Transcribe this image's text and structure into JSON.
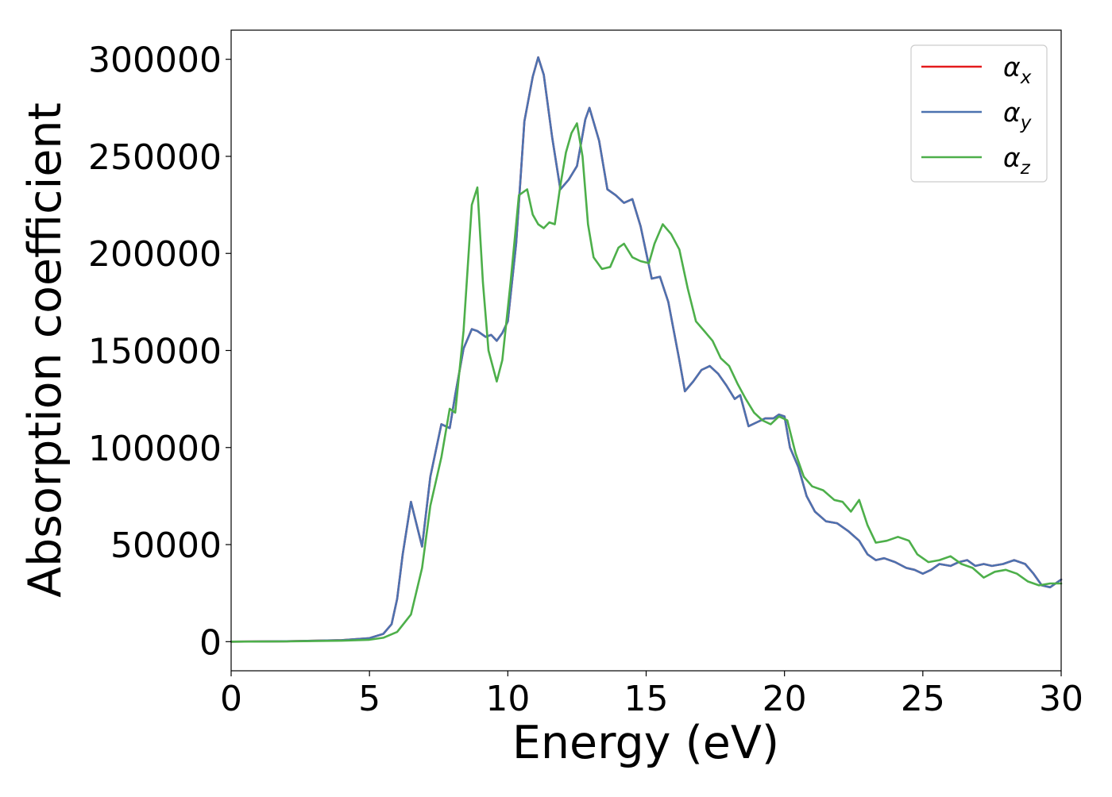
{
  "chart_data": {
    "type": "line",
    "title": "",
    "xlabel": "Energy (eV)",
    "ylabel": "Absorption coefficient",
    "xlim": [
      0,
      30
    ],
    "ylim": [
      -15000,
      315000
    ],
    "xticks": [
      0,
      5,
      10,
      15,
      20,
      25,
      30
    ],
    "yticks": [
      0,
      50000,
      100000,
      150000,
      200000,
      250000,
      300000
    ],
    "grid": false,
    "legend_position": "top-right",
    "series": [
      {
        "name": "α_x",
        "legend_symbol": "α",
        "legend_subscript": "x",
        "color": "#e41a1c",
        "x": [
          0,
          2,
          4,
          5,
          5.5,
          5.8,
          6.0,
          6.2,
          6.5,
          6.9,
          7.2,
          7.6,
          7.9,
          8.1,
          8.4,
          8.7,
          8.9,
          9.2,
          9.4,
          9.6,
          9.8,
          10.0,
          10.3,
          10.6,
          10.9,
          11.1,
          11.3,
          11.6,
          11.9,
          12.2,
          12.5,
          12.8,
          12.95,
          13.3,
          13.6,
          13.9,
          14.2,
          14.5,
          14.8,
          15.2,
          15.5,
          15.8,
          16.2,
          16.4,
          16.7,
          17.0,
          17.3,
          17.6,
          17.9,
          18.2,
          18.4,
          18.7,
          19.0,
          19.3,
          19.6,
          19.8,
          20.0,
          20.2,
          20.5,
          20.8,
          21.1,
          21.5,
          21.9,
          22.3,
          22.7,
          23.0,
          23.3,
          23.6,
          24.0,
          24.4,
          24.7,
          25.0,
          25.3,
          25.6,
          26.0,
          26.3,
          26.6,
          26.9,
          27.2,
          27.5,
          27.9,
          28.3,
          28.7,
          29.0,
          29.3,
          29.6,
          30.0
        ],
        "y": [
          0,
          200,
          800,
          1800,
          4000,
          9000,
          22000,
          45000,
          72000,
          49000,
          85000,
          112000,
          110000,
          127000,
          151000,
          161000,
          160000,
          157000,
          158000,
          155000,
          159000,
          165000,
          205000,
          268000,
          291000,
          301000,
          292000,
          260000,
          233000,
          238000,
          245000,
          269000,
          275000,
          258000,
          233000,
          230000,
          226000,
          228000,
          214000,
          187000,
          188000,
          175000,
          145000,
          129000,
          134000,
          140000,
          142000,
          138000,
          132000,
          125000,
          127000,
          111000,
          113000,
          115000,
          115000,
          117000,
          116000,
          100000,
          90000,
          75000,
          67000,
          62000,
          61000,
          57000,
          52000,
          45000,
          42000,
          43000,
          41000,
          38000,
          37000,
          35000,
          37000,
          40000,
          39000,
          41000,
          42000,
          39000,
          40000,
          39000,
          40000,
          42000,
          40000,
          35000,
          29000,
          28000,
          32000
        ]
      },
      {
        "name": "α_y",
        "legend_symbol": "α",
        "legend_subscript": "y",
        "color": "#4c72b0",
        "x": [
          0,
          2,
          4,
          5,
          5.5,
          5.8,
          6.0,
          6.2,
          6.5,
          6.9,
          7.2,
          7.6,
          7.9,
          8.1,
          8.4,
          8.7,
          8.9,
          9.2,
          9.4,
          9.6,
          9.8,
          10.0,
          10.3,
          10.6,
          10.9,
          11.1,
          11.3,
          11.6,
          11.9,
          12.2,
          12.5,
          12.8,
          12.95,
          13.3,
          13.6,
          13.9,
          14.2,
          14.5,
          14.8,
          15.2,
          15.5,
          15.8,
          16.2,
          16.4,
          16.7,
          17.0,
          17.3,
          17.6,
          17.9,
          18.2,
          18.4,
          18.7,
          19.0,
          19.3,
          19.6,
          19.8,
          20.0,
          20.2,
          20.5,
          20.8,
          21.1,
          21.5,
          21.9,
          22.3,
          22.7,
          23.0,
          23.3,
          23.6,
          24.0,
          24.4,
          24.7,
          25.0,
          25.3,
          25.6,
          26.0,
          26.3,
          26.6,
          26.9,
          27.2,
          27.5,
          27.9,
          28.3,
          28.7,
          29.0,
          29.3,
          29.6,
          30.0
        ],
        "y": [
          0,
          200,
          800,
          1800,
          4000,
          9000,
          22000,
          45000,
          72000,
          49000,
          85000,
          112000,
          110000,
          127000,
          151000,
          161000,
          160000,
          157000,
          158000,
          155000,
          159000,
          165000,
          205000,
          268000,
          291000,
          301000,
          292000,
          260000,
          233000,
          238000,
          245000,
          269000,
          275000,
          258000,
          233000,
          230000,
          226000,
          228000,
          214000,
          187000,
          188000,
          175000,
          145000,
          129000,
          134000,
          140000,
          142000,
          138000,
          132000,
          125000,
          127000,
          111000,
          113000,
          115000,
          115000,
          117000,
          116000,
          100000,
          90000,
          75000,
          67000,
          62000,
          61000,
          57000,
          52000,
          45000,
          42000,
          43000,
          41000,
          38000,
          37000,
          35000,
          37000,
          40000,
          39000,
          41000,
          42000,
          39000,
          40000,
          39000,
          40000,
          42000,
          40000,
          35000,
          29000,
          28000,
          32000
        ]
      },
      {
        "name": "α_z",
        "legend_symbol": "α",
        "legend_subscript": "z",
        "color": "#4daf4a",
        "x": [
          0,
          2,
          4,
          5,
          5.5,
          6.0,
          6.5,
          6.9,
          7.2,
          7.6,
          7.9,
          8.1,
          8.4,
          8.7,
          8.9,
          9.1,
          9.3,
          9.6,
          9.8,
          10.1,
          10.4,
          10.7,
          10.9,
          11.1,
          11.3,
          11.5,
          11.7,
          11.9,
          12.1,
          12.3,
          12.5,
          12.7,
          12.9,
          13.1,
          13.4,
          13.7,
          14.0,
          14.2,
          14.5,
          14.8,
          15.1,
          15.3,
          15.6,
          15.9,
          16.2,
          16.5,
          16.8,
          17.1,
          17.4,
          17.7,
          18.0,
          18.3,
          18.6,
          18.9,
          19.2,
          19.5,
          19.8,
          20.1,
          20.4,
          20.7,
          21.0,
          21.4,
          21.8,
          22.1,
          22.4,
          22.7,
          23.0,
          23.3,
          23.7,
          24.1,
          24.5,
          24.8,
          25.2,
          25.6,
          26.0,
          26.4,
          26.8,
          27.2,
          27.6,
          28.0,
          28.4,
          28.8,
          29.2,
          29.6,
          30.0
        ],
        "y": [
          0,
          150,
          500,
          1000,
          2000,
          5000,
          14000,
          38000,
          70000,
          95000,
          120000,
          118000,
          160000,
          225000,
          234000,
          185000,
          150000,
          134000,
          145000,
          185000,
          230000,
          233000,
          220000,
          215000,
          213000,
          216000,
          215000,
          235000,
          252000,
          262000,
          267000,
          250000,
          215000,
          198000,
          192000,
          193000,
          203000,
          205000,
          198000,
          196000,
          195000,
          205000,
          215000,
          210000,
          202000,
          182000,
          165000,
          160000,
          155000,
          146000,
          142000,
          133000,
          125000,
          118000,
          114000,
          112000,
          116000,
          114000,
          97000,
          85000,
          80000,
          78000,
          73000,
          72000,
          67000,
          73000,
          60000,
          51000,
          52000,
          54000,
          52000,
          45000,
          41000,
          42000,
          44000,
          40000,
          38000,
          33000,
          36000,
          37000,
          35000,
          31000,
          29000,
          30000,
          30000
        ]
      }
    ]
  }
}
